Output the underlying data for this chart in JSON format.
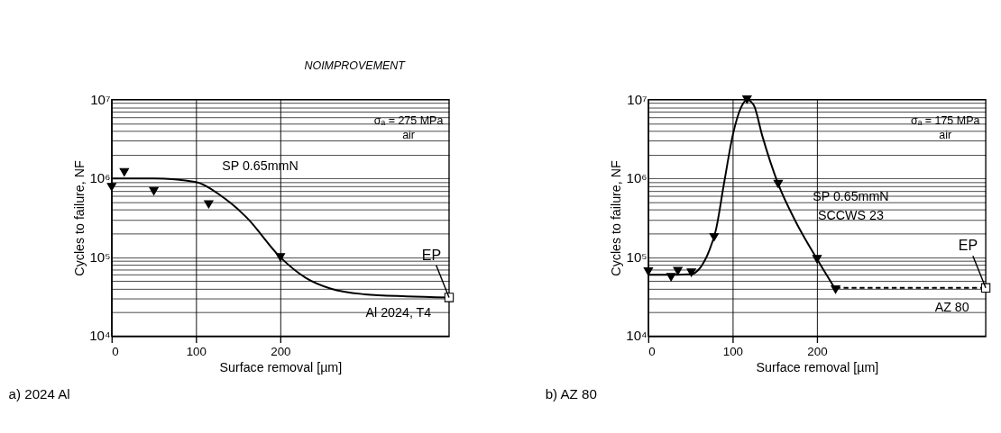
{
  "chart_data": [
    {
      "type": "scatter",
      "title": "a) 2024 Al",
      "xlabel": "Surface removal [µm]",
      "ylabel": "Cycles to failure, NF",
      "log": "y",
      "grid": true,
      "xlim": [
        0,
        400
      ],
      "xticks": [
        0,
        100,
        200
      ],
      "ylim": [
        10000,
        10000000
      ],
      "yticks": [
        {
          "value": 10000,
          "label": "10⁴"
        },
        {
          "value": 20000,
          "label": null
        },
        {
          "value": 30000,
          "label": null
        },
        {
          "value": 40000,
          "label": null
        },
        {
          "value": 50000,
          "label": null
        },
        {
          "value": 60000,
          "label": null
        },
        {
          "value": 70000,
          "label": null
        },
        {
          "value": 80000,
          "label": null
        },
        {
          "value": 90000,
          "label": null
        },
        {
          "value": 100000,
          "label": "10⁵"
        },
        {
          "value": 200000,
          "label": null
        },
        {
          "value": 300000,
          "label": null
        },
        {
          "value": 400000,
          "label": null
        },
        {
          "value": 500000,
          "label": null
        },
        {
          "value": 600000,
          "label": null
        },
        {
          "value": 700000,
          "label": null
        },
        {
          "value": 800000,
          "label": null
        },
        {
          "value": 900000,
          "label": null
        },
        {
          "value": 1000000,
          "label": "10⁶"
        },
        {
          "value": 2000000,
          "label": null
        },
        {
          "value": 3000000,
          "label": null
        },
        {
          "value": 4000000,
          "label": null
        },
        {
          "value": 5000000,
          "label": null
        },
        {
          "value": 6000000,
          "label": null
        },
        {
          "value": 7000000,
          "label": null
        },
        {
          "value": 8000000,
          "label": null
        },
        {
          "value": 9000000,
          "label": null
        },
        {
          "value": 10000000,
          "label": "10⁷"
        }
      ],
      "series": [
        {
          "marker": "triangle",
          "color": "#000000",
          "x": [
            0,
            15,
            50,
            115,
            200
          ],
          "values": [
            780000,
            1200000,
            690000,
            470000,
            100000
          ]
        },
        {
          "type": "line",
          "line_style": "solid",
          "color": "#000000",
          "x": [
            0,
            50,
            100,
            130,
            160,
            200,
            230,
            260,
            300,
            350,
            400
          ],
          "values": [
            1000000,
            1000000,
            900000,
            600000,
            320000,
            100000,
            55000,
            40000,
            34000,
            32000,
            31000
          ]
        },
        {
          "marker": "square",
          "color": "#000000",
          "x": [
            400
          ],
          "values": [
            31000
          ]
        }
      ],
      "annotations": [
        "NOIMPROVEMENT",
        "σₐ = 275 MPa",
        "air",
        "SP 0.65mmN",
        "Al 2024, T4",
        {
          "text": "EP",
          "x": 400,
          "y": 31000
        }
      ]
    },
    {
      "type": "scatter",
      "title": "b) AZ 80",
      "xlabel": "Surface removal [µm]",
      "ylabel": "Cycles to failure, NF",
      "log": "y",
      "grid": true,
      "xlim": [
        0,
        400
      ],
      "xticks": [
        0,
        100,
        200
      ],
      "ylim": [
        10000,
        10000000
      ],
      "yticks": [
        {
          "value": 10000,
          "label": "10⁴"
        },
        {
          "value": 20000,
          "label": null
        },
        {
          "value": 30000,
          "label": null
        },
        {
          "value": 40000,
          "label": null
        },
        {
          "value": 50000,
          "label": null
        },
        {
          "value": 60000,
          "label": null
        },
        {
          "value": 70000,
          "label": null
        },
        {
          "value": 80000,
          "label": null
        },
        {
          "value": 90000,
          "label": null
        },
        {
          "value": 100000,
          "label": "10⁵"
        },
        {
          "value": 200000,
          "label": null
        },
        {
          "value": 300000,
          "label": null
        },
        {
          "value": 400000,
          "label": null
        },
        {
          "value": 500000,
          "label": null
        },
        {
          "value": 600000,
          "label": null
        },
        {
          "value": 700000,
          "label": null
        },
        {
          "value": 800000,
          "label": null
        },
        {
          "value": 900000,
          "label": null
        },
        {
          "value": 1000000,
          "label": "10⁶"
        },
        {
          "value": 2000000,
          "label": null
        },
        {
          "value": 3000000,
          "label": null
        },
        {
          "value": 4000000,
          "label": null
        },
        {
          "value": 5000000,
          "label": null
        },
        {
          "value": 6000000,
          "label": null
        },
        {
          "value": 7000000,
          "label": null
        },
        {
          "value": 8000000,
          "label": null
        },
        {
          "value": 9000000,
          "label": null
        },
        {
          "value": 10000000,
          "label": "10⁷"
        }
      ],
      "series": [
        {
          "marker": "triangle",
          "color": "#000000",
          "x": [
            0,
            27,
            35,
            51,
            78,
            117,
            154,
            200,
            222
          ],
          "values": [
            66000,
            56000,
            67000,
            64000,
            180000,
            10000000,
            850000,
            95000,
            39000
          ]
        },
        {
          "type": "line",
          "line_style": "solid",
          "color": "#000000",
          "x": [
            0,
            20,
            50,
            62,
            72,
            80,
            90,
            100,
            110,
            117,
            125,
            135,
            154,
            175,
            200,
            222
          ],
          "values": [
            60000,
            60000,
            61000,
            75000,
            120000,
            220000,
            900000,
            3500000,
            8000000,
            10000000,
            8500000,
            3500000,
            850000,
            280000,
            95000,
            39000
          ]
        },
        {
          "type": "line",
          "line_style": "dashed",
          "color": "#000000",
          "x": [
            222,
            400
          ],
          "values": [
            41000,
            41000
          ]
        },
        {
          "marker": "square",
          "color": "#000000",
          "x": [
            400
          ],
          "values": [
            41000
          ]
        }
      ],
      "annotations": [
        "σₐ = 175 MPa",
        "air",
        "SP 0.65mmN",
        "SCCWS 23",
        "AZ 80",
        {
          "text": "EP",
          "x": 400,
          "y": 41000
        }
      ]
    }
  ]
}
